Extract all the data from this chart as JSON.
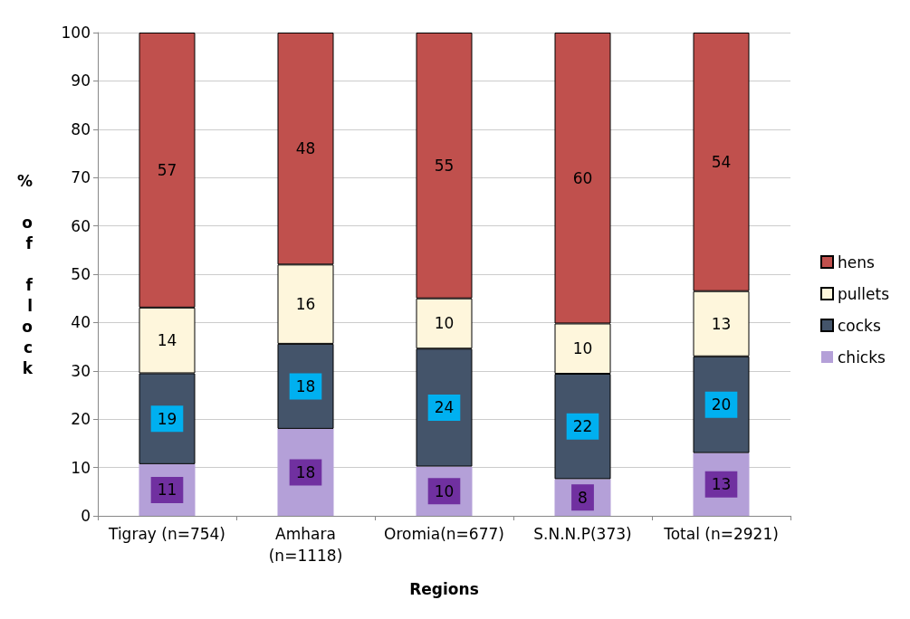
{
  "chart_data": {
    "type": "bar",
    "stacked": true,
    "xlabel": "Regions",
    "ylabel": "% of flock",
    "categories": [
      "Tigray (n=754)",
      "Amhara\n(n=1118)",
      "Oromia(n=677)",
      "S.N.N.P(373)",
      "Total (n=2921)"
    ],
    "series": [
      {
        "name": "chicks",
        "color": "#b4a0d8",
        "values": [
          10.7,
          18,
          10.2,
          7.6,
          13
        ],
        "value_labels": [
          "11",
          "18",
          "10",
          "8",
          "13"
        ]
      },
      {
        "name": "cocks",
        "color": "#44546a",
        "values": [
          18.8,
          17.6,
          24.4,
          21.8,
          20
        ],
        "value_labels": [
          "19",
          "18",
          "24",
          "22",
          "20"
        ]
      },
      {
        "name": "pullets",
        "color": "#fef6dc",
        "values": [
          13.6,
          16.4,
          10.4,
          10.4,
          13.5
        ],
        "value_labels": [
          "14",
          "16",
          "10",
          "10",
          "13"
        ]
      },
      {
        "name": "hens",
        "color": "#c0504d",
        "values": [
          56.9,
          48,
          55,
          60.2,
          53.5
        ],
        "value_labels": [
          "57",
          "48",
          "55",
          "60",
          "54"
        ]
      }
    ],
    "ylim": [
      0,
      100
    ],
    "yticks": [
      0,
      10,
      20,
      30,
      40,
      50,
      60,
      70,
      80,
      90,
      100
    ],
    "grid": "y",
    "legend": "right"
  }
}
